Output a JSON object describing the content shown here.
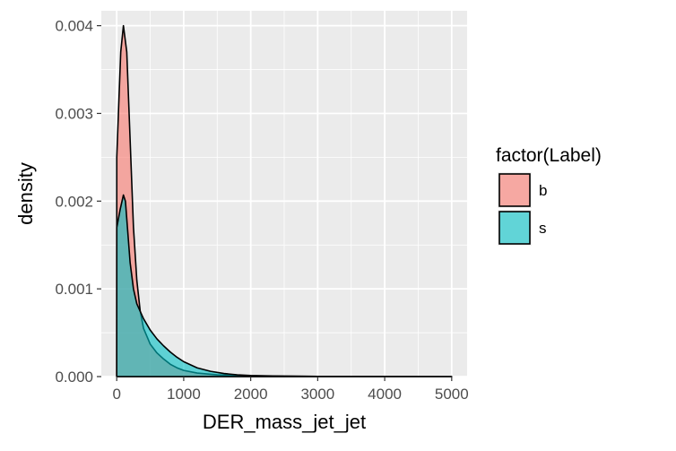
{
  "chart_data": {
    "type": "area",
    "title": "",
    "xlabel": "DER_mass_jet_jet",
    "ylabel": "density",
    "xlim": [
      -230,
      5230
    ],
    "ylim": [
      0,
      0.00417
    ],
    "x_ticks": [
      0,
      1000,
      2000,
      3000,
      4000,
      5000
    ],
    "x_tick_labels": [
      "0",
      "1000",
      "2000",
      "3000",
      "4000",
      "5000"
    ],
    "y_ticks": [
      0,
      0.001,
      0.002,
      0.003,
      0.004
    ],
    "y_tick_labels": [
      "0.000",
      "0.001",
      "0.002",
      "0.003",
      "0.004"
    ],
    "grid": true,
    "legend": {
      "title": "factor(Label)",
      "placement": "right",
      "entries": [
        "b",
        "s"
      ]
    },
    "series": [
      {
        "name": "b",
        "color": "#F8766D",
        "points": [
          [
            0,
            0
          ],
          [
            1,
            0.0025
          ],
          [
            30,
            0.0031
          ],
          [
            60,
            0.0037
          ],
          [
            100,
            0.004
          ],
          [
            150,
            0.0037
          ],
          [
            200,
            0.0027
          ],
          [
            250,
            0.0017
          ],
          [
            300,
            0.0011
          ],
          [
            350,
            0.00075
          ],
          [
            400,
            0.00055
          ],
          [
            500,
            0.00037
          ],
          [
            600,
            0.00027
          ],
          [
            700,
            0.0002
          ],
          [
            800,
            0.00014
          ],
          [
            900,
            0.0001
          ],
          [
            1000,
            7e-05
          ],
          [
            1200,
            4e-05
          ],
          [
            1500,
            2e-05
          ],
          [
            2000,
            8e-06
          ],
          [
            3000,
            2e-06
          ],
          [
            4000,
            5e-07
          ],
          [
            5000,
            0
          ]
        ]
      },
      {
        "name": "s",
        "color": "#00BFC4",
        "points": [
          [
            0,
            0
          ],
          [
            1,
            0.0017
          ],
          [
            50,
            0.0019
          ],
          [
            100,
            0.00207
          ],
          [
            130,
            0.002
          ],
          [
            160,
            0.0017
          ],
          [
            200,
            0.0013
          ],
          [
            250,
            0.001
          ],
          [
            300,
            0.00083
          ],
          [
            400,
            0.00066
          ],
          [
            500,
            0.00053
          ],
          [
            600,
            0.00043
          ],
          [
            700,
            0.00035
          ],
          [
            800,
            0.00028
          ],
          [
            900,
            0.00022
          ],
          [
            1000,
            0.00017
          ],
          [
            1200,
            0.0001
          ],
          [
            1400,
            6e-05
          ],
          [
            1600,
            3.5e-05
          ],
          [
            1800,
            2e-05
          ],
          [
            2000,
            1.2e-05
          ],
          [
            2500,
            4e-06
          ],
          [
            3000,
            1.5e-06
          ],
          [
            4000,
            3e-07
          ],
          [
            5000,
            0
          ]
        ]
      }
    ]
  },
  "colors": {
    "panel_bg": "#EBEBEB",
    "grid_major": "#FFFFFF",
    "axis_text": "#4D4D4D",
    "b_fill": "#F8766D",
    "s_fill": "#00BFC4"
  }
}
